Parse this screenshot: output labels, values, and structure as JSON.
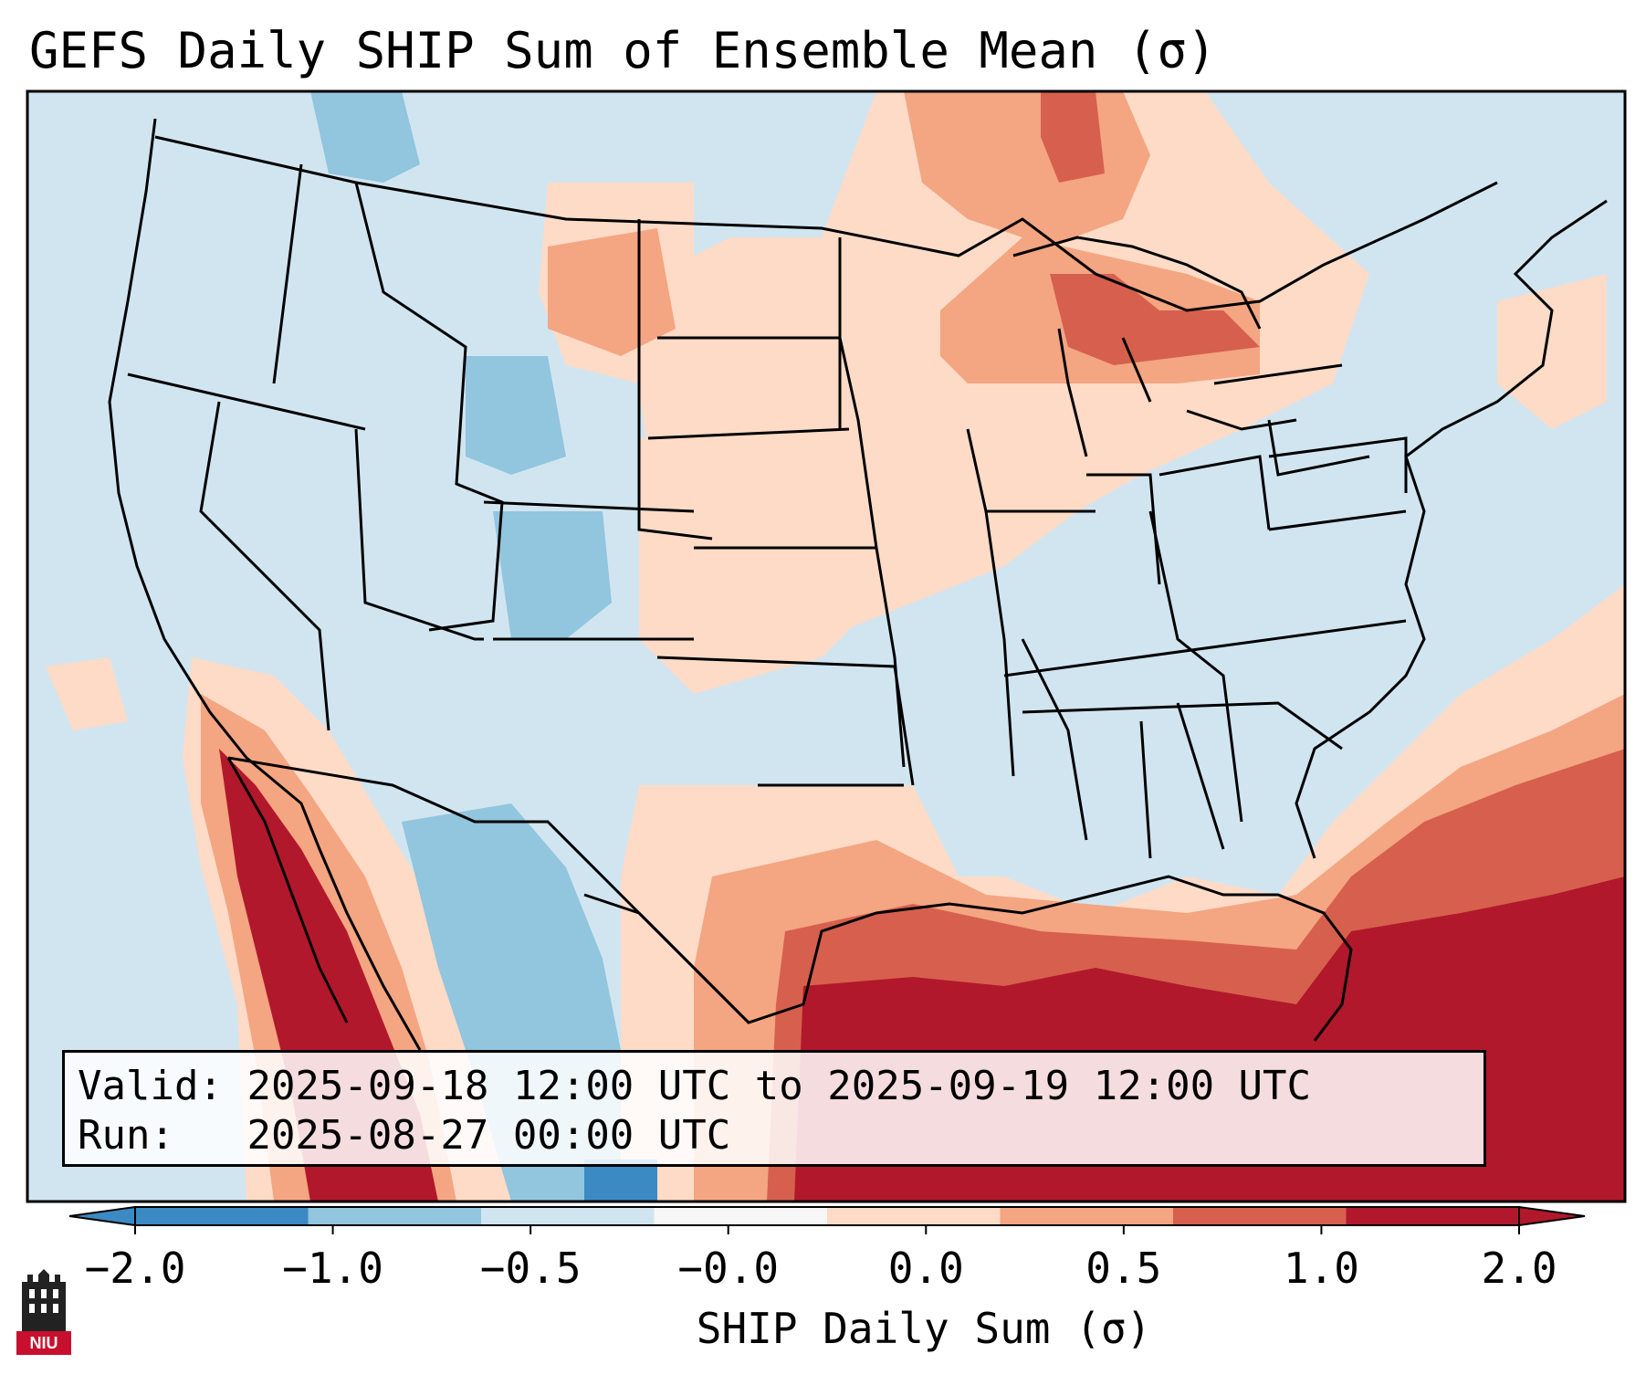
{
  "title": "GEFS Daily SHIP Sum of Ensemble Mean (σ)",
  "info": {
    "valid_label": "Valid:",
    "valid_value": "2025-09-18 12:00 UTC to 2025-09-19 12:00 UTC",
    "run_label": "Run:",
    "run_value": "2025-08-27 00:00 UTC"
  },
  "colorbar": {
    "label": "SHIP Daily Sum (σ)",
    "ticks": [
      "−2.0",
      "−1.0",
      "−0.5",
      "−0.0",
      "0.0",
      "0.5",
      "1.0",
      "2.0"
    ],
    "colors": [
      "#3b8ac4",
      "#92c5de",
      "#d1e5f0",
      "#f7f7f7",
      "#fddbc7",
      "#f4a582",
      "#d6604d",
      "#b2182b"
    ],
    "extend": "both"
  },
  "logo": {
    "text": "NIU"
  },
  "map": {
    "background": "#d1e5f0",
    "region": "Continental United States",
    "projection": "Lambert Conformal"
  }
}
